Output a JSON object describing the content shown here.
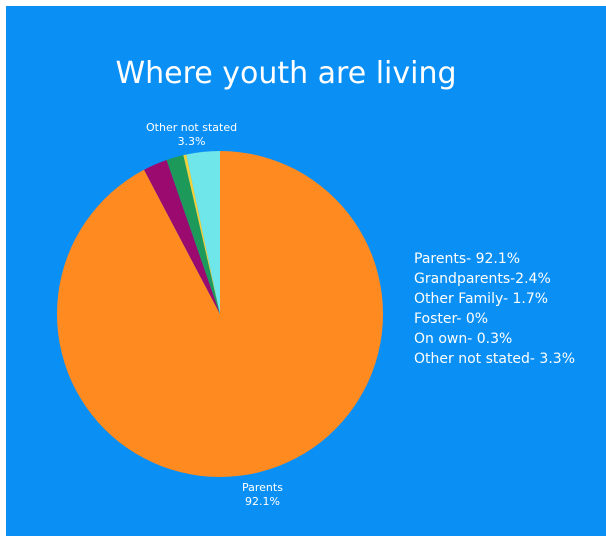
{
  "chart_data": {
    "type": "pie",
    "title": "Where youth are living",
    "slices": [
      {
        "name": "Parents",
        "value": 92.1,
        "color": "#ff8a1f"
      },
      {
        "name": "Grandparents",
        "value": 2.4,
        "color": "#9b0a6e"
      },
      {
        "name": "Other Family",
        "value": 1.7,
        "color": "#1d9a5a"
      },
      {
        "name": "Foster",
        "value": 0,
        "color": "#1c6e3a"
      },
      {
        "name": "On own",
        "value": 0.3,
        "color": "#f2d23c"
      },
      {
        "name": "Other not stated",
        "value": 3.3,
        "color": "#6fe6ea"
      }
    ],
    "data_labels": [
      {
        "name": "Other not stated",
        "value": "3.3%"
      },
      {
        "name": "Parents",
        "value": "92.1%"
      }
    ],
    "legend": {
      "placement": "right",
      "entries": [
        "Parents- 92.1%",
        "Grandparents-2.4%",
        "Other Family- 1.7%",
        "Foster- 0%",
        "On own- 0.3%",
        "Other not stated- 3.3%"
      ]
    }
  }
}
